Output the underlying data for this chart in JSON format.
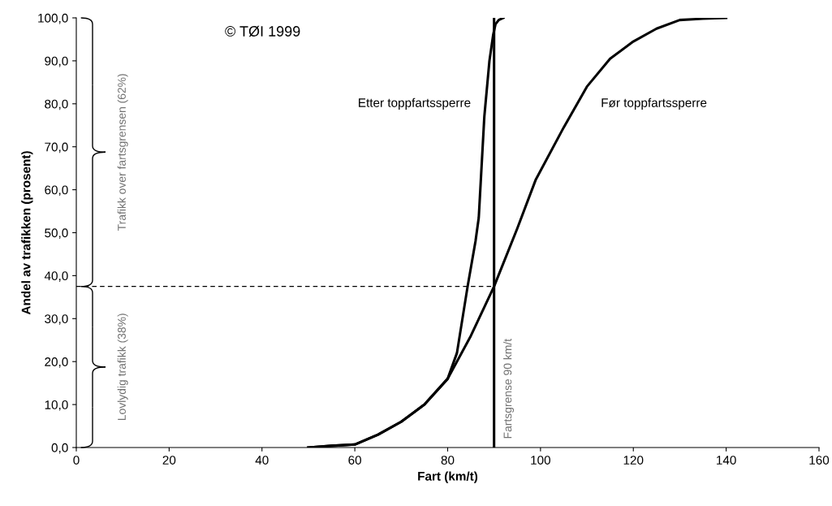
{
  "chart_data": {
    "type": "line",
    "xlabel": "Fart (km/t)",
    "ylabel": "Andel av trafikken (prosent)",
    "xlim": [
      0,
      160
    ],
    "ylim": [
      0,
      100
    ],
    "xticks": [
      0,
      20,
      40,
      60,
      80,
      100,
      120,
      140,
      160
    ],
    "yticks": [
      {
        "value": 0,
        "label": "0,0"
      },
      {
        "value": 10,
        "label": "10,0"
      },
      {
        "value": 20,
        "label": "20,0"
      },
      {
        "value": 30,
        "label": "30,0"
      },
      {
        "value": 40,
        "label": "40,0"
      },
      {
        "value": 50,
        "label": "50,0"
      },
      {
        "value": 60,
        "label": "60,0"
      },
      {
        "value": 70,
        "label": "70,0"
      },
      {
        "value": 80,
        "label": "80,0"
      },
      {
        "value": 90,
        "label": "90,0"
      },
      {
        "value": 100,
        "label": "100,0"
      }
    ],
    "grid": false,
    "marker": "none",
    "series": [
      {
        "name": "Etter toppfartssperre",
        "color": "#000000",
        "x": [
          50,
          55,
          60,
          65,
          70,
          75,
          80,
          82,
          84.3,
          86,
          86.7,
          87.9,
          89,
          89.8,
          90.3,
          91,
          92
        ],
        "values": [
          0,
          0.4,
          0.7,
          3,
          6,
          10,
          16,
          22,
          37.5,
          48,
          53.5,
          77,
          90,
          96,
          98.5,
          99.5,
          100
        ]
      },
      {
        "name": "Før toppfartssperre",
        "color": "#000000",
        "x": [
          50,
          55,
          60,
          65,
          70,
          75,
          80,
          85,
          90,
          95,
          99,
          105,
          110,
          115,
          120,
          125,
          130,
          135,
          140
        ],
        "values": [
          0,
          0.4,
          0.7,
          3,
          6,
          10,
          16,
          26,
          37.5,
          51,
          62.4,
          74.5,
          84,
          90.5,
          94.5,
          97.5,
          99.5,
          99.8,
          100
        ]
      },
      {
        "color": "#000000",
        "line_style": "dashed",
        "x": [
          0,
          90
        ],
        "values": [
          37.5,
          37.5
        ]
      }
    ],
    "ref_lines": [
      {
        "axis": "x",
        "value": 90,
        "label": "Fartsgrense 90 km/t"
      }
    ],
    "annotations": [
      "© TØI 1999",
      "Trafikk over fartsgrensen (62%)",
      "Lovlydig trafikk (38%)"
    ]
  }
}
